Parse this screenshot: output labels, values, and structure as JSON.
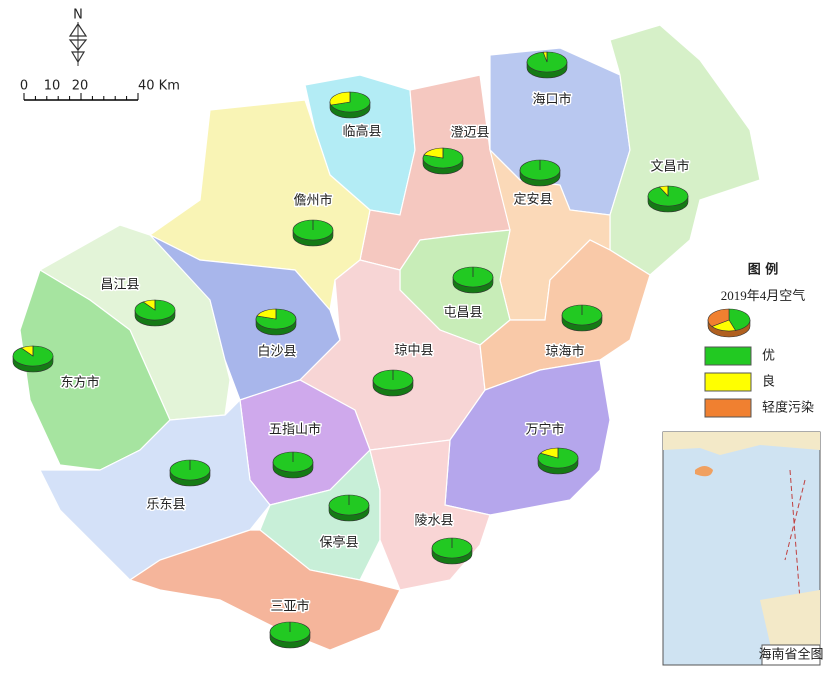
{
  "north": "N",
  "scale_bar": {
    "labels": [
      "0",
      "10",
      "20",
      "40 Km"
    ]
  },
  "legend": {
    "title": "图 例",
    "subtitle": "2019年4月空气",
    "sample_values": [
      45,
      20,
      35
    ],
    "items": [
      {
        "name": "优",
        "color": "#22c922"
      },
      {
        "name": "良",
        "color": "#ffff00"
      },
      {
        "name": "轻度污染",
        "color": "#f08030"
      }
    ]
  },
  "regions": [
    {
      "name": "海口市",
      "values": [
        97,
        3,
        0
      ]
    },
    {
      "name": "文昌市",
      "values": [
        93,
        7,
        0
      ]
    },
    {
      "name": "临高县",
      "values": [
        70,
        30,
        0
      ]
    },
    {
      "name": "澄迈县",
      "values": [
        80,
        20,
        0
      ]
    },
    {
      "name": "定安县",
      "values": [
        100,
        0,
        0
      ]
    },
    {
      "name": "儋州市",
      "values": [
        100,
        0,
        0
      ]
    },
    {
      "name": "昌江县",
      "values": [
        90,
        10,
        0
      ]
    },
    {
      "name": "东方市",
      "values": [
        90,
        10,
        0
      ]
    },
    {
      "name": "白沙县",
      "values": [
        80,
        20,
        0
      ]
    },
    {
      "name": "屯昌县",
      "values": [
        100,
        0,
        0
      ]
    },
    {
      "name": "琼中县",
      "values": [
        100,
        0,
        0
      ]
    },
    {
      "name": "琼海市",
      "values": [
        100,
        0,
        0
      ]
    },
    {
      "name": "万宁市",
      "values": [
        83,
        17,
        0
      ]
    },
    {
      "name": "五指山市",
      "values": [
        100,
        0,
        0
      ]
    },
    {
      "name": "乐东县",
      "values": [
        100,
        0,
        0
      ]
    },
    {
      "name": "保亭县",
      "values": [
        100,
        0,
        0
      ]
    },
    {
      "name": "陵水县",
      "values": [
        100,
        0,
        0
      ]
    },
    {
      "name": "三亚市",
      "values": [
        100,
        0,
        0
      ]
    }
  ],
  "inset": {
    "caption": "海南省全图"
  }
}
